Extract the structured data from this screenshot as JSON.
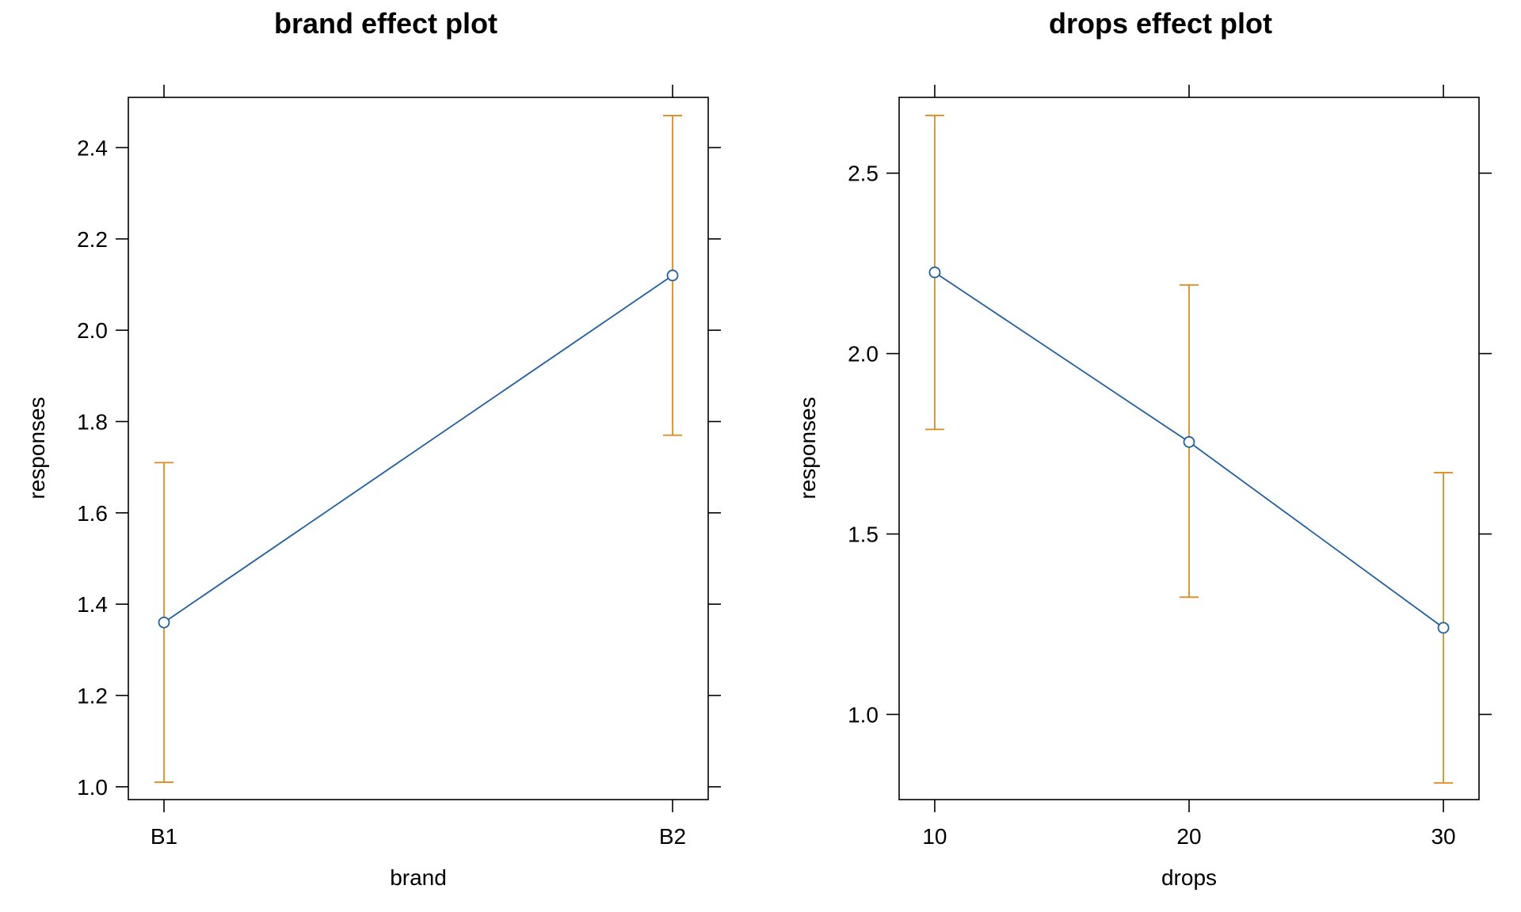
{
  "chart_data": [
    {
      "type": "line",
      "title": "brand effect plot",
      "xlabel": "brand",
      "ylabel": "responses",
      "x_kind": "categorical",
      "categories": [
        "B1",
        "B2"
      ],
      "ylim": [
        0.972,
        2.51
      ],
      "y_ticks": [
        1.0,
        1.2,
        1.4,
        1.6,
        1.8,
        2.0,
        2.2,
        2.4
      ],
      "y_tick_labels": [
        "1.0",
        "1.2",
        "1.4",
        "1.6",
        "1.8",
        "2.0",
        "2.2",
        "2.4"
      ],
      "series": [
        {
          "values": [
            1.36,
            2.12
          ],
          "lower": [
            1.01,
            1.77
          ],
          "upper": [
            1.71,
            2.47
          ]
        }
      ],
      "grid": false,
      "colors": {
        "line": "#1f5fa5",
        "errorbar": "#e08a1e",
        "frame": "#000000"
      }
    },
    {
      "type": "line",
      "title": "drops effect plot",
      "xlabel": "drops",
      "ylabel": "responses",
      "x_kind": "numeric",
      "x": [
        10,
        20,
        30
      ],
      "xlim": [
        8.6,
        31.4
      ],
      "x_ticks": [
        10,
        20,
        30
      ],
      "x_tick_labels": [
        "10",
        "20",
        "30"
      ],
      "ylim": [
        0.764,
        2.71
      ],
      "y_ticks": [
        1.0,
        1.5,
        2.0,
        2.5
      ],
      "y_tick_labels": [
        "1.0",
        "1.5",
        "2.0",
        "2.5"
      ],
      "series": [
        {
          "values": [
            2.225,
            1.755,
            1.24
          ],
          "lower": [
            1.79,
            1.325,
            0.81
          ],
          "upper": [
            2.66,
            2.19,
            1.67
          ]
        }
      ],
      "grid": false,
      "colors": {
        "line": "#1f5fa5",
        "errorbar": "#e08a1e",
        "frame": "#000000"
      }
    }
  ]
}
